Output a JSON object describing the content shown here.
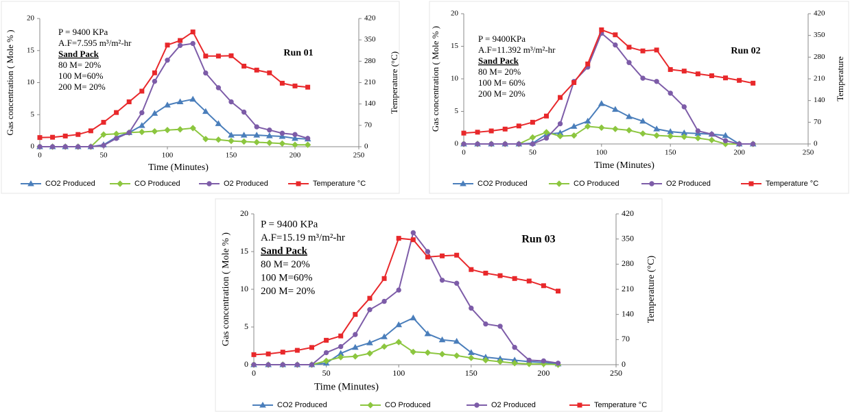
{
  "chart_data": [
    {
      "type": "line",
      "title": "Run 01",
      "annotations": [
        "P = 9400 KPa",
        "A.F=7.595 m³/m²-hr",
        "Sand Pack",
        "80 M= 20%",
        "100 M=60%",
        "200 M= 20%"
      ],
      "x_label": "Time (Minutes)",
      "y_label": "Gas concentration ( Mole % )",
      "y2_label": "Temperature (°C)",
      "x": [
        0,
        10,
        20,
        30,
        40,
        50,
        60,
        70,
        80,
        90,
        100,
        110,
        120,
        130,
        140,
        150,
        160,
        170,
        180,
        190,
        200,
        210
      ],
      "xlim": [
        0,
        250
      ],
      "xticks": [
        0,
        50,
        100,
        150,
        200,
        250
      ],
      "ylim": [
        0,
        20
      ],
      "yticks": [
        0,
        5,
        10,
        15,
        20
      ],
      "y2lim": [
        0,
        420
      ],
      "y2ticks": [
        0,
        70,
        140,
        210,
        280,
        350,
        420
      ],
      "legend": "bottom",
      "series": [
        {
          "name": "CO2 Produced",
          "color": "#4a7ebb",
          "marker": "triangle",
          "values": [
            0,
            0,
            0,
            0,
            0,
            0.3,
            1.5,
            2.2,
            3.3,
            5.2,
            6.5,
            7,
            7.4,
            5.5,
            3.6,
            1.8,
            1.8,
            1.8,
            1.7,
            1.6,
            1.3,
            1.2
          ]
        },
        {
          "name": "CO Produced",
          "color": "#8cc63f",
          "marker": "diamond",
          "values": [
            0,
            0,
            0,
            0,
            0,
            1.9,
            2,
            2.2,
            2.3,
            2.4,
            2.6,
            2.7,
            2.9,
            1.2,
            1.1,
            0.9,
            0.8,
            0.7,
            0.6,
            0.5,
            0.3,
            0.3
          ]
        },
        {
          "name": "O2 Produced",
          "color": "#7d5ca8",
          "marker": "circle",
          "values": [
            0,
            0,
            0,
            0,
            0,
            0.2,
            1.3,
            2.2,
            5.3,
            10.2,
            13.5,
            15.8,
            16.1,
            11.5,
            9.2,
            7,
            5.4,
            3.1,
            2.6,
            2.1,
            1.9,
            1.3
          ]
        },
        {
          "name": "Temperature °C",
          "color": "#e8282b",
          "marker": "square",
          "axis": "y2",
          "values": [
            30,
            31,
            35,
            40,
            52,
            80,
            112,
            147,
            182,
            242,
            333,
            348,
            376,
            297,
            297,
            298,
            264,
            251,
            242,
            208,
            199,
            195
          ]
        }
      ]
    },
    {
      "type": "line",
      "title": "Run 02",
      "annotations": [
        "P = 9400KPa",
        "A.F=11.392 m³/m²-hr",
        "Sand Pack",
        "80 M= 20%",
        "100 M= 60%",
        "200 M= 20%"
      ],
      "x_label": "Time (Minutes)",
      "y_label": "Gas concentration ( Mole % )",
      "y2_label": "Temperature",
      "x": [
        0,
        10,
        20,
        30,
        40,
        50,
        60,
        70,
        80,
        90,
        100,
        110,
        120,
        130,
        140,
        150,
        160,
        170,
        180,
        190,
        200,
        210
      ],
      "xlim": [
        0,
        250
      ],
      "xticks": [
        0,
        50,
        100,
        150,
        200,
        250
      ],
      "ylim": [
        0,
        20
      ],
      "yticks": [
        0,
        5,
        10,
        15,
        20
      ],
      "y2lim": [
        0,
        420
      ],
      "y2ticks": [
        0,
        70,
        140,
        210,
        280,
        350,
        420
      ],
      "legend": "bottom",
      "series": [
        {
          "name": "CO2 Produced",
          "color": "#4a7ebb",
          "marker": "triangle",
          "values": [
            0,
            0,
            0,
            0,
            0,
            0.1,
            1.5,
            1.7,
            2.7,
            3.5,
            6.2,
            5.3,
            4.2,
            3.5,
            2.3,
            1.9,
            1.7,
            1.6,
            1.5,
            1.3,
            0,
            0
          ]
        },
        {
          "name": "CO Produced",
          "color": "#8cc63f",
          "marker": "diamond",
          "values": [
            0,
            0,
            0,
            0,
            0,
            1,
            1.8,
            1.2,
            1.3,
            2.7,
            2.5,
            2.3,
            2.1,
            1.6,
            1.3,
            1.2,
            1.1,
            0.9,
            0.6,
            0,
            0,
            0
          ]
        },
        {
          "name": "O2 Produced",
          "color": "#7d5ca8",
          "marker": "circle",
          "values": [
            0,
            0,
            0,
            0,
            0,
            0,
            0.9,
            3.1,
            9.6,
            11.8,
            17,
            15.2,
            12.5,
            10.1,
            9.6,
            7.8,
            5.7,
            2,
            1.5,
            0.5,
            0,
            0
          ]
        },
        {
          "name": "Temperature °C",
          "color": "#e8282b",
          "marker": "square",
          "axis": "y2",
          "values": [
            35,
            38,
            42,
            48,
            58,
            70,
            90,
            150,
            198,
            258,
            368,
            352,
            312,
            300,
            303,
            240,
            235,
            226,
            220,
            213,
            205,
            196
          ]
        }
      ]
    },
    {
      "type": "line",
      "title": "Run 03",
      "annotations": [
        "P = 9400 KPa",
        "A.F=15.19 m³/m²-hr",
        "Sand Pack",
        "80 M= 20%",
        "100 M=60%",
        "200 M= 20%"
      ],
      "x_label": "Time (Minutes)",
      "y_label": "Gas concentration ( Mole % )",
      "y2_label": "Temperature (°C)",
      "x": [
        0,
        10,
        20,
        30,
        40,
        50,
        60,
        70,
        80,
        90,
        100,
        110,
        120,
        130,
        140,
        150,
        160,
        170,
        180,
        190,
        200,
        210
      ],
      "xlim": [
        0,
        250
      ],
      "xticks": [
        0,
        50,
        100,
        150,
        200,
        250
      ],
      "ylim": [
        0,
        20
      ],
      "yticks": [
        0,
        5,
        10,
        15,
        20
      ],
      "y2lim": [
        0,
        420
      ],
      "y2ticks": [
        0,
        70,
        140,
        210,
        280,
        350,
        420
      ],
      "legend": "bottom",
      "series": [
        {
          "name": "CO2 Produced",
          "color": "#4a7ebb",
          "marker": "triangle",
          "values": [
            0,
            0,
            0,
            0,
            0,
            0.2,
            1.5,
            2.3,
            2.9,
            3.7,
            5.3,
            6.2,
            4.1,
            3.3,
            3.1,
            1.6,
            1,
            0.8,
            0.6,
            0.4,
            0.3,
            0.1
          ]
        },
        {
          "name": "CO Produced",
          "color": "#8cc63f",
          "marker": "diamond",
          "values": [
            0,
            0,
            0,
            0,
            0,
            0.5,
            1,
            1.1,
            1.5,
            2.4,
            3,
            1.7,
            1.6,
            1.4,
            1.2,
            0.9,
            0.6,
            0.4,
            0.2,
            0.1,
            0.1,
            0
          ]
        },
        {
          "name": "O2 Produced",
          "color": "#7d5ca8",
          "marker": "circle",
          "values": [
            0,
            0,
            0,
            0,
            0,
            1.6,
            2.4,
            4,
            7.3,
            8.4,
            9.9,
            17.5,
            15,
            11.2,
            10.8,
            7.5,
            5.4,
            5.1,
            2.3,
            0.6,
            0.5,
            0.2
          ]
        },
        {
          "name": "Temperature °C",
          "color": "#e8282b",
          "marker": "square",
          "axis": "y2",
          "values": [
            28,
            30,
            35,
            40,
            48,
            68,
            80,
            140,
            185,
            240,
            352,
            348,
            300,
            303,
            305,
            265,
            255,
            248,
            240,
            233,
            220,
            205
          ]
        }
      ]
    }
  ]
}
